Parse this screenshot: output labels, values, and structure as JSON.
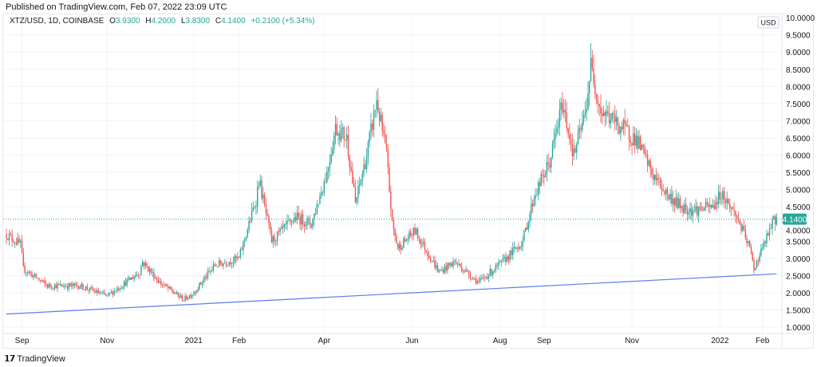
{
  "header": {
    "published": "Published on TradingView.com, Feb 07, 2022 23:09 UTC"
  },
  "legend": {
    "symbol": "XTZ/USD, 1D, COINBASE",
    "o_label": "O",
    "o": "3.9300",
    "h_label": "H",
    "h": "4.2000",
    "l_label": "L",
    "l": "3.8300",
    "c_label": "C",
    "c": "4.1400",
    "change": "+0.2100 (+5.34%)"
  },
  "footer": {
    "brand": "TradingView",
    "logo_glyph": "17"
  },
  "colors": {
    "up": "#26a69a",
    "down": "#ef5350",
    "trendline": "#5b7fe8",
    "grid": "#f0f3fa"
  },
  "chart_data": {
    "type": "candlestick",
    "title": "XTZ/USD, 1D, COINBASE",
    "currency_label": "USD",
    "ylim": [
      1.0,
      10.0
    ],
    "y_ticks": [
      "10.0000",
      "9.5000",
      "9.0000",
      "8.5000",
      "8.0000",
      "7.5000",
      "7.0000",
      "6.5000",
      "6.0000",
      "5.5000",
      "5.0000",
      "4.5000",
      "4.0000",
      "3.5000",
      "3.0000",
      "2.5000",
      "2.0000",
      "1.5000",
      "1.0000"
    ],
    "x_range_days": [
      0,
      545
    ],
    "x_ticks": [
      {
        "label": "Sep",
        "day": 11
      },
      {
        "label": "Nov",
        "day": 71
      },
      {
        "label": "2021",
        "day": 132
      },
      {
        "label": "Feb",
        "day": 164
      },
      {
        "label": "Apr",
        "day": 224
      },
      {
        "label": "Jun",
        "day": 286
      },
      {
        "label": "Aug",
        "day": 348
      },
      {
        "label": "Sep",
        "day": 379
      },
      {
        "label": "Nov",
        "day": 441
      },
      {
        "label": "2022",
        "day": 503
      },
      {
        "label": "Feb",
        "day": 533
      }
    ],
    "last_price": "4.1400",
    "price_path": [
      [
        0,
        3.7
      ],
      [
        10,
        3.4
      ],
      [
        12,
        2.7
      ],
      [
        29,
        2.2
      ],
      [
        52,
        2.2
      ],
      [
        71,
        1.9
      ],
      [
        94,
        2.6
      ],
      [
        96,
        2.9
      ],
      [
        108,
        2.3
      ],
      [
        125,
        1.8
      ],
      [
        132,
        2.0
      ],
      [
        147,
        2.8
      ],
      [
        164,
        3.0
      ],
      [
        176,
        4.7
      ],
      [
        178,
        5.3
      ],
      [
        187,
        3.5
      ],
      [
        204,
        4.2
      ],
      [
        215,
        4.0
      ],
      [
        226,
        5.5
      ],
      [
        232,
        6.8
      ],
      [
        240,
        6.5
      ],
      [
        246,
        4.6
      ],
      [
        254,
        6.0
      ],
      [
        261,
        7.6
      ],
      [
        268,
        6.0
      ],
      [
        272,
        4.0
      ],
      [
        276,
        3.3
      ],
      [
        288,
        3.8
      ],
      [
        305,
        2.6
      ],
      [
        316,
        2.9
      ],
      [
        333,
        2.3
      ],
      [
        350,
        2.9
      ],
      [
        364,
        3.5
      ],
      [
        372,
        4.8
      ],
      [
        383,
        5.8
      ],
      [
        392,
        7.5
      ],
      [
        400,
        6.0
      ],
      [
        408,
        7.2
      ],
      [
        412,
        8.6
      ],
      [
        419,
        7.3
      ],
      [
        434,
        6.8
      ],
      [
        445,
        6.4
      ],
      [
        456,
        5.4
      ],
      [
        467,
        4.8
      ],
      [
        476,
        4.5
      ],
      [
        484,
        4.4
      ],
      [
        498,
        4.5
      ],
      [
        504,
        4.9
      ],
      [
        515,
        4.2
      ],
      [
        524,
        3.3
      ],
      [
        527,
        2.7
      ],
      [
        532,
        3.2
      ],
      [
        541,
        4.1
      ],
      [
        543,
        4.14
      ]
    ],
    "trendline": {
      "start": [
        0,
        1.38
      ],
      "end": [
        543,
        2.55
      ]
    }
  }
}
